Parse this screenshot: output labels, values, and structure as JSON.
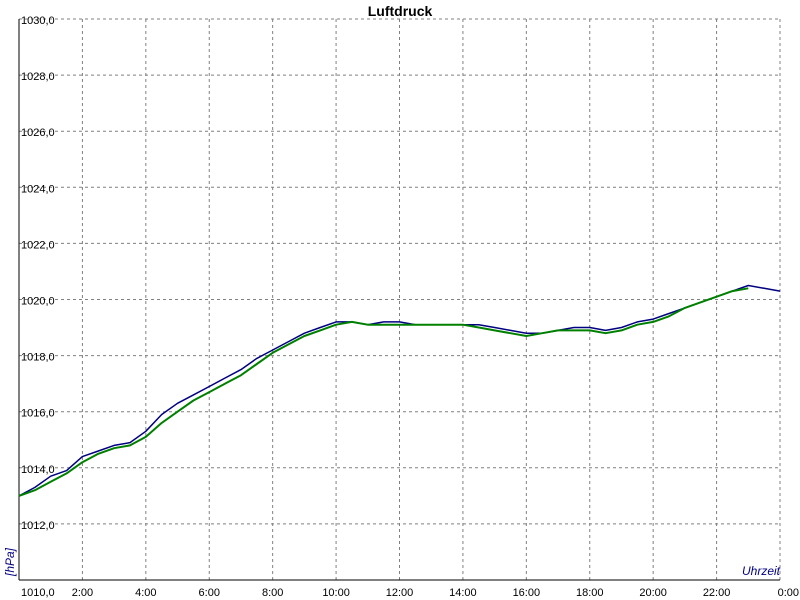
{
  "chart_data": {
    "type": "line",
    "title": "Luftdruck",
    "xlabel": "Uhrzeit",
    "ylabel": "[hPa]",
    "xlim": [
      0,
      24
    ],
    "ylim": [
      1010,
      1030
    ],
    "grid": true,
    "x_ticks": [
      {
        "value": 0,
        "label": "0:00"
      },
      {
        "value": 2,
        "label": "2:00"
      },
      {
        "value": 4,
        "label": "4:00"
      },
      {
        "value": 6,
        "label": "6:00"
      },
      {
        "value": 8,
        "label": "8:00"
      },
      {
        "value": 10,
        "label": "10:00"
      },
      {
        "value": 12,
        "label": "12:00"
      },
      {
        "value": 14,
        "label": "14:00"
      },
      {
        "value": 16,
        "label": "16:00"
      },
      {
        "value": 18,
        "label": "18:00"
      },
      {
        "value": 20,
        "label": "20:00"
      },
      {
        "value": 22,
        "label": "22:00"
      },
      {
        "value": 24,
        "label": "0:00"
      }
    ],
    "y_ticks": [
      {
        "value": 1010,
        "label": "1010,0"
      },
      {
        "value": 1012,
        "label": "1012,0"
      },
      {
        "value": 1014,
        "label": "1014,0"
      },
      {
        "value": 1016,
        "label": "1016,0"
      },
      {
        "value": 1018,
        "label": "1018,0"
      },
      {
        "value": 1020,
        "label": "1020,0"
      },
      {
        "value": 1022,
        "label": "1022,0"
      },
      {
        "value": 1024,
        "label": "1024,0"
      },
      {
        "value": 1026,
        "label": "1026,0"
      },
      {
        "value": 1028,
        "label": "1028,0"
      },
      {
        "value": 1030,
        "label": "1030,0"
      }
    ],
    "series": [
      {
        "color": "#000080",
        "x": [
          0,
          0.5,
          1.0,
          1.5,
          2.0,
          2.5,
          3.0,
          3.5,
          4.0,
          4.5,
          5.0,
          5.5,
          6.0,
          6.5,
          7.0,
          7.5,
          8.0,
          8.5,
          9.0,
          9.5,
          10.0,
          10.5,
          11.0,
          11.5,
          12.0,
          12.5,
          13.0,
          13.5,
          14.0,
          14.5,
          15.0,
          15.5,
          16.0,
          16.5,
          17.0,
          17.5,
          18.0,
          18.5,
          19.0,
          19.5,
          20.0,
          20.5,
          21.0,
          21.5,
          22.0,
          22.5,
          23.0,
          23.5,
          24.0
        ],
        "values": [
          1013.0,
          1013.3,
          1013.7,
          1013.9,
          1014.4,
          1014.6,
          1014.8,
          1014.9,
          1015.3,
          1015.9,
          1016.3,
          1016.6,
          1016.9,
          1017.2,
          1017.5,
          1017.9,
          1018.2,
          1018.5,
          1018.8,
          1019.0,
          1019.2,
          1019.2,
          1019.1,
          1019.2,
          1019.2,
          1019.1,
          1019.1,
          1019.1,
          1019.1,
          1019.1,
          1019.0,
          1018.9,
          1018.8,
          1018.8,
          1018.9,
          1019.0,
          1019.0,
          1018.9,
          1019.0,
          1019.2,
          1019.3,
          1019.5,
          1019.7,
          1019.9,
          1020.1,
          1020.3,
          1020.5,
          1020.4,
          1020.3
        ]
      },
      {
        "color": "#008000",
        "x": [
          0,
          0.5,
          1.0,
          1.5,
          2.0,
          2.5,
          3.0,
          3.5,
          4.0,
          4.5,
          5.0,
          5.5,
          6.0,
          6.5,
          7.0,
          7.5,
          8.0,
          8.5,
          9.0,
          9.5,
          10.0,
          10.5,
          11.0,
          11.5,
          12.0,
          12.5,
          13.0,
          13.5,
          14.0,
          14.5,
          15.0,
          15.5,
          16.0,
          16.5,
          17.0,
          17.5,
          18.0,
          18.5,
          19.0,
          19.5,
          20.0,
          20.5,
          21.0,
          21.5,
          22.0,
          22.5,
          23.0
        ],
        "values": [
          1013.0,
          1013.2,
          1013.5,
          1013.8,
          1014.2,
          1014.5,
          1014.7,
          1014.8,
          1015.1,
          1015.6,
          1016.0,
          1016.4,
          1016.7,
          1017.0,
          1017.3,
          1017.7,
          1018.1,
          1018.4,
          1018.7,
          1018.9,
          1019.1,
          1019.2,
          1019.1,
          1019.1,
          1019.1,
          1019.1,
          1019.1,
          1019.1,
          1019.1,
          1019.0,
          1018.9,
          1018.8,
          1018.7,
          1018.8,
          1018.9,
          1018.9,
          1018.9,
          1018.8,
          1018.9,
          1019.1,
          1019.2,
          1019.4,
          1019.7,
          1019.9,
          1020.1,
          1020.3,
          1020.4
        ]
      }
    ]
  }
}
